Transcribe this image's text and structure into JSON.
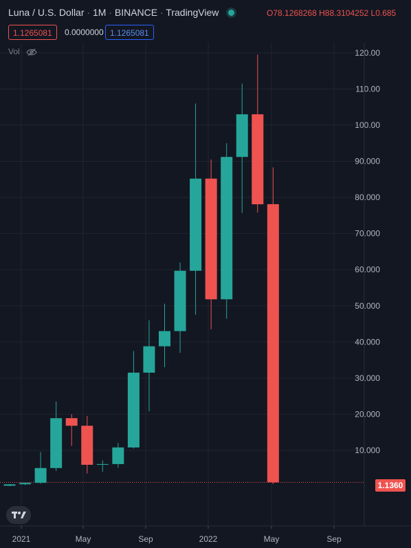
{
  "header": {
    "symbol": "Luna / U.S. Dollar",
    "interval": "1M",
    "exchange": "BINANCE",
    "source": "TradingView",
    "open_label": "O",
    "open_value": "78.1268268",
    "high_label": "H",
    "high_value": "88.3104252",
    "low_label": "L",
    "low_value": "0.685",
    "inputs": [
      "1.1265081",
      "0.0000000",
      "1.1265081"
    ],
    "vol_label": "Vol"
  },
  "price_label": "1.1360",
  "colors": {
    "background": "#131722",
    "up": "#26a69a",
    "down": "#ef5350",
    "grid": "#1f2430",
    "text": "#b2b5be"
  },
  "chart_data": {
    "type": "candlestick",
    "y_ticks": [
      "120.00",
      "110.00",
      "100.00",
      "90.000",
      "80.000",
      "70.000",
      "60.000",
      "50.000",
      "40.000",
      "30.000",
      "20.000",
      "10.000"
    ],
    "x_ticks": [
      "2021",
      "May",
      "Sep",
      "2022",
      "May",
      "Sep"
    ],
    "ylim": [
      -7,
      127
    ],
    "candles": [
      {
        "month": "2020-11",
        "o": 0.2,
        "h": 0.7,
        "l": 0.1,
        "c": 0.6
      },
      {
        "month": "2020-12",
        "o": 0.6,
        "h": 1.2,
        "l": 0.4,
        "c": 1.0
      },
      {
        "month": "2021-01",
        "o": 1.0,
        "h": 9.5,
        "l": 0.8,
        "c": 5.1
      },
      {
        "month": "2021-02",
        "o": 5.1,
        "h": 23.5,
        "l": 4.3,
        "c": 18.9
      },
      {
        "month": "2021-03",
        "o": 18.9,
        "h": 20.0,
        "l": 11.2,
        "c": 16.8
      },
      {
        "month": "2021-04",
        "o": 16.8,
        "h": 19.5,
        "l": 3.6,
        "c": 6.0
      },
      {
        "month": "2021-05",
        "o": 6.0,
        "h": 7.2,
        "l": 4.1,
        "c": 6.2
      },
      {
        "month": "2021-06",
        "o": 6.2,
        "h": 12.0,
        "l": 5.2,
        "c": 10.8
      },
      {
        "month": "2021-07",
        "o": 10.8,
        "h": 37.5,
        "l": 10.5,
        "c": 31.5
      },
      {
        "month": "2021-08",
        "o": 31.5,
        "h": 46.0,
        "l": 20.8,
        "c": 38.8
      },
      {
        "month": "2021-09",
        "o": 38.8,
        "h": 50.6,
        "l": 33.0,
        "c": 43.0
      },
      {
        "month": "2021-10",
        "o": 43.0,
        "h": 62.0,
        "l": 37.0,
        "c": 59.7
      },
      {
        "month": "2021-11",
        "o": 59.7,
        "h": 106.0,
        "l": 47.5,
        "c": 85.2
      },
      {
        "month": "2021-12",
        "o": 85.2,
        "h": 90.5,
        "l": 43.5,
        "c": 51.8
      },
      {
        "month": "2022-01",
        "o": 51.8,
        "h": 95.0,
        "l": 46.4,
        "c": 91.2
      },
      {
        "month": "2022-02",
        "o": 91.2,
        "h": 111.5,
        "l": 75.7,
        "c": 103.0
      },
      {
        "month": "2022-03",
        "o": 103.0,
        "h": 119.5,
        "l": 75.8,
        "c": 78.1
      },
      {
        "month": "2022-04",
        "o": 78.1268268,
        "h": 88.3104252,
        "l": 0.685,
        "c": 1.136
      }
    ]
  }
}
